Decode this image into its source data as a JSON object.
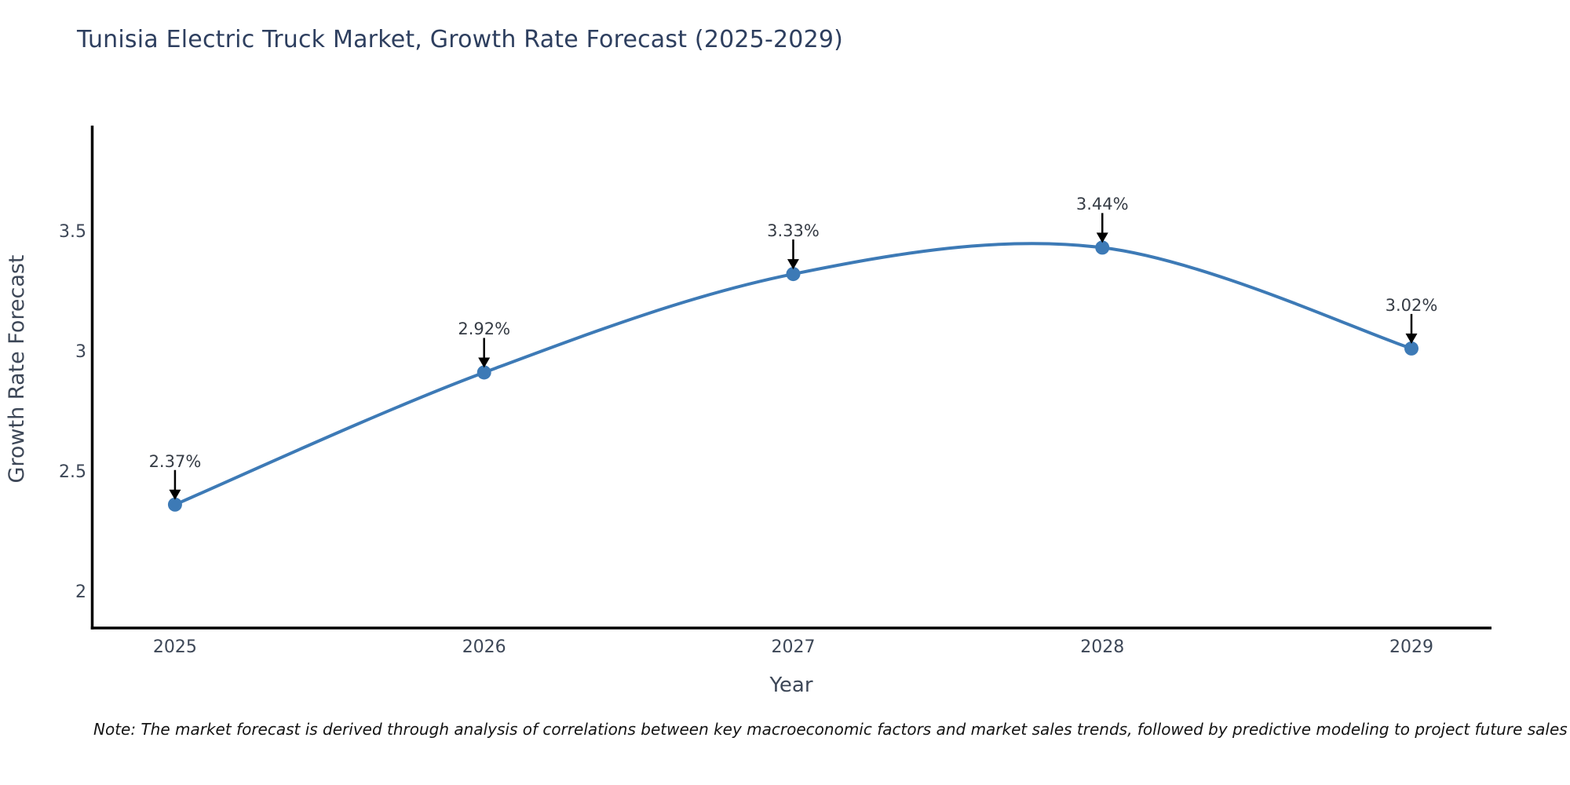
{
  "chart_data": {
    "type": "line",
    "title": "Tunisia Electric Truck Market, Growth Rate Forecast (2025-2029)",
    "xlabel": "Year",
    "ylabel": "Growth Rate Forecast",
    "x": [
      2025,
      2026,
      2027,
      2028,
      2029
    ],
    "values": [
      2.37,
      2.92,
      3.33,
      3.44,
      3.02
    ],
    "point_labels": [
      "2.37%",
      "2.92%",
      "3.33%",
      "3.44%",
      "3.02%"
    ],
    "x_tick_labels": [
      "2025",
      "2026",
      "2027",
      "2028",
      "2029"
    ],
    "y_ticks": [
      2,
      2.5,
      3,
      3.5
    ],
    "y_tick_labels": [
      "2",
      "2.5",
      "3",
      "3.5"
    ],
    "xlim": [
      2024.731,
      2029.259
    ],
    "ylim": [
      1.856,
      3.948
    ],
    "grid": false,
    "legend": "none",
    "curve": "smooth-spline",
    "line_color": "#3d7ab6",
    "marker_color": "#3d7ab6",
    "axis_color": "#000000",
    "arrow_color": "#000000",
    "title_color": "#2e3f5f",
    "tick_color": "#3d4757",
    "annotation_text_color": "#363c45",
    "background_color": "#ffffff"
  },
  "note": {
    "text": "Note: The market forecast is derived through analysis of correlations between key macroeconomic factors and market sales trends, followed by predictive modeling to project future sales"
  }
}
